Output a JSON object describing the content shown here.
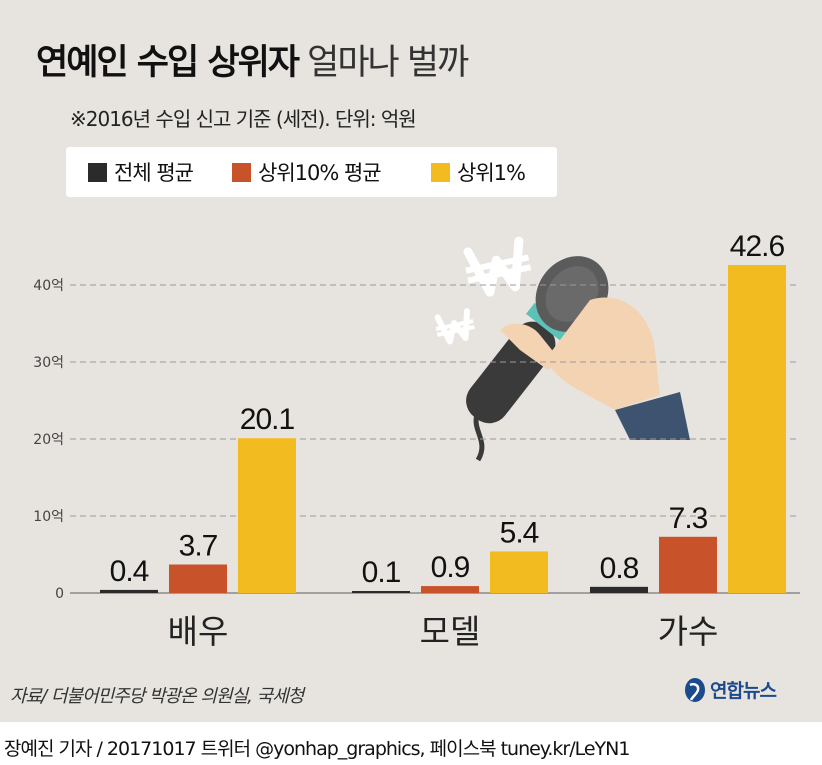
{
  "header": {
    "title_bold": "연예인 수입 상위자",
    "title_light": "얼마나 벌까",
    "subtitle": "※2016년 수입 신고 기준 (세전). 단위: 억원"
  },
  "colors": {
    "background": "#e7e4df",
    "series_all": "#2b2b2b",
    "series_top10": "#c8532b",
    "series_top1": "#f2bb1f"
  },
  "chart_data": {
    "type": "bar",
    "categories": [
      "배우",
      "모델",
      "가수"
    ],
    "series": [
      {
        "name": "전체 평균",
        "values": [
          0.4,
          0.1,
          0.8
        ],
        "labels": [
          "0.4",
          "0.1",
          "0.8"
        ]
      },
      {
        "name": "상위10% 평균",
        "values": [
          3.7,
          0.9,
          7.3
        ],
        "labels": [
          "3.7",
          "0.9",
          "7.3"
        ]
      },
      {
        "name": "상위1%",
        "values": [
          20.1,
          5.4,
          42.6
        ],
        "labels": [
          "20.1",
          "5.4",
          "42.6"
        ]
      }
    ],
    "yticks": [
      {
        "value": 0,
        "label": "0"
      },
      {
        "value": 10,
        "label": "10억"
      },
      {
        "value": 20,
        "label": "20억"
      },
      {
        "value": 30,
        "label": "30억"
      },
      {
        "value": 40,
        "label": "40억"
      }
    ],
    "ylim": [
      0,
      45
    ],
    "grid": true,
    "legend_position": "top-left"
  },
  "footer": {
    "source": "자료/ 더불어민주당 박광온 의원실, 국세청",
    "logo_text": "연합뉴스",
    "credit": "장예진 기자 / 20171017 트위터 @yonhap_graphics, 페이스북 tuney.kr/LeYN1"
  }
}
